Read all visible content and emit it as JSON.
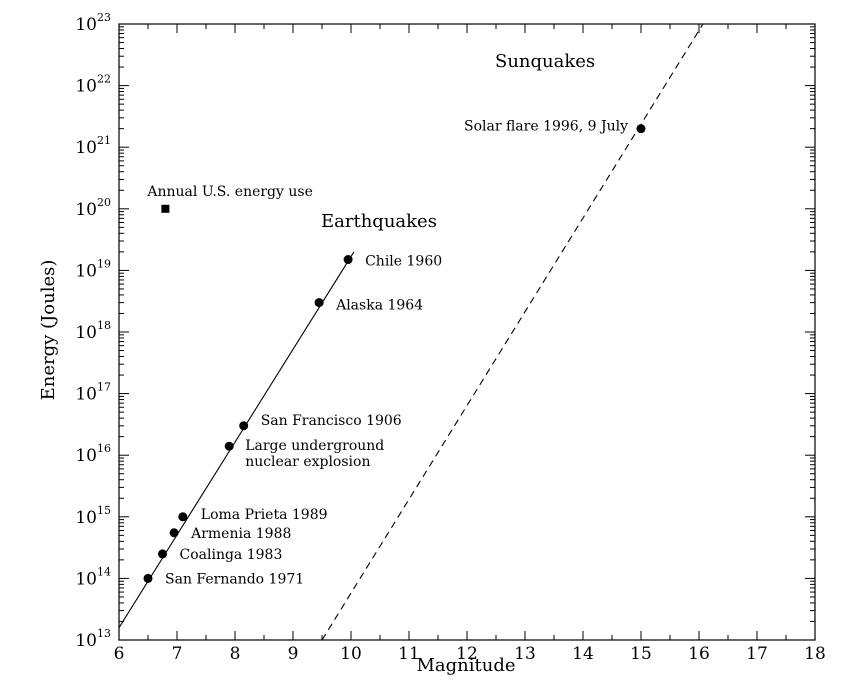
{
  "chart_data": {
    "type": "scatter",
    "xlabel": "Magnitude",
    "ylabel": "Energy (Joules)",
    "xlim": [
      6,
      18
    ],
    "ylim_log10": [
      13,
      23
    ],
    "yscale": "log",
    "x_ticks": [
      "6",
      "7",
      "8",
      "9",
      "10",
      "11",
      "12",
      "13",
      "14",
      "15",
      "16",
      "17",
      "18"
    ],
    "y_ticks": [
      {
        "base": "10",
        "exp": "13"
      },
      {
        "base": "10",
        "exp": "14"
      },
      {
        "base": "10",
        "exp": "15"
      },
      {
        "base": "10",
        "exp": "16"
      },
      {
        "base": "10",
        "exp": "17"
      },
      {
        "base": "10",
        "exp": "18"
      },
      {
        "base": "10",
        "exp": "19"
      },
      {
        "base": "10",
        "exp": "20"
      },
      {
        "base": "10",
        "exp": "21"
      },
      {
        "base": "10",
        "exp": "22"
      },
      {
        "base": "10",
        "exp": "23"
      }
    ],
    "region_labels": [
      "Sunquakes",
      "Earthquakes"
    ],
    "points": [
      {
        "label": "San Fernando 1971",
        "x": 6.5,
        "y": 100000000000000.0,
        "marker": "circle"
      },
      {
        "label": "Coalinga 1983",
        "x": 6.75,
        "y": 250000000000000.0,
        "marker": "circle"
      },
      {
        "label": "Armenia 1988",
        "x": 6.95,
        "y": 550000000000000.0,
        "marker": "circle"
      },
      {
        "label": "Loma Prieta 1989",
        "x": 7.1,
        "y": 1000000000000000.0,
        "marker": "circle"
      },
      {
        "label": "Large underground nuclear explosion",
        "x": 7.9,
        "y": 1.4e+16,
        "marker": "circle"
      },
      {
        "label": "San Francisco 1906",
        "x": 8.15,
        "y": 3e+16,
        "marker": "circle"
      },
      {
        "label": "Alaska 1964",
        "x": 9.45,
        "y": 3e+18,
        "marker": "circle"
      },
      {
        "label": "Chile 1960",
        "x": 9.95,
        "y": 1.5e+19,
        "marker": "circle"
      },
      {
        "label": "Solar flare 1996, 9 July",
        "x": 15.0,
        "y": 2e+21,
        "marker": "circle"
      },
      {
        "label": "Annual U.S. energy use",
        "x": 6.8,
        "y": 1e+20,
        "marker": "square"
      }
    ],
    "lines": [
      {
        "style": "solid",
        "x": [
          6.0,
          10.05
        ],
        "y_log10": [
          13.2,
          19.3
        ]
      },
      {
        "style": "dashed",
        "x": [
          9.5,
          16.2
        ],
        "y_log10": [
          13.0,
          23.2
        ]
      }
    ]
  }
}
